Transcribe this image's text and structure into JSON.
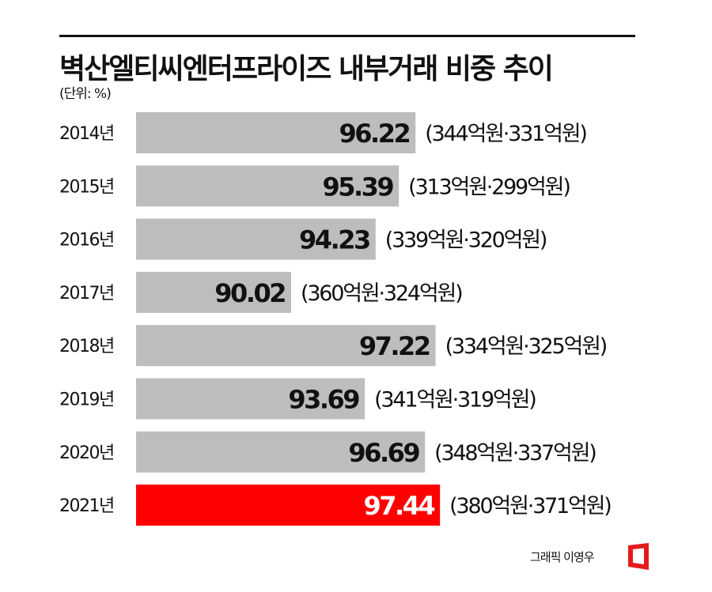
{
  "title": "벽산엘티씨엔터프라이즈 내부거래 비중 추이",
  "unit": "(단위: %)",
  "credit": "그래픽 이영우",
  "colors": {
    "bar": "#bdbdbd",
    "highlight": "#ff0000",
    "text": "#111111",
    "highlight_text": "#ffffff"
  },
  "chart_data": {
    "type": "bar",
    "orientation": "horizontal",
    "categories": [
      "2014년",
      "2015년",
      "2016년",
      "2017년",
      "2018년",
      "2019년",
      "2020년",
      "2021년"
    ],
    "values": [
      96.22,
      95.39,
      94.23,
      90.02,
      97.22,
      93.69,
      96.69,
      97.44
    ],
    "value_labels": [
      "96.22",
      "95.39",
      "94.23",
      "90.02",
      "97.22",
      "93.69",
      "96.69",
      "97.44"
    ],
    "annotations": [
      "(344억원·331억원)",
      "(313억원·299억원)",
      "(339억원·320억원)",
      "(360억원·324억원)",
      "(334억원·325억원)",
      "(341억원·319억원)",
      "(348억원·337억원)",
      "(380억원·371억원)"
    ],
    "highlight_index": 7,
    "grid": false,
    "legend": "none"
  }
}
